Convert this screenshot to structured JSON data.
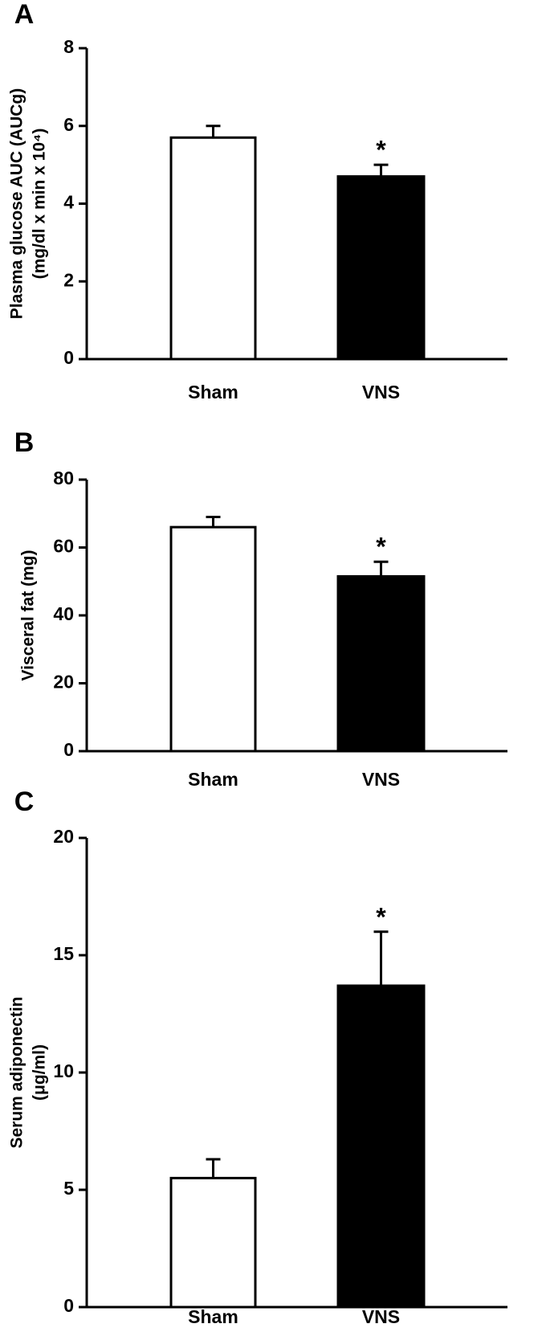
{
  "chart_data": [
    {
      "type": "bar",
      "panel_label": "A",
      "y_label": [
        "Plasma glucose AUC (AUCg)",
        "(mg/dl x min x 10⁴)"
      ],
      "categories": [
        "Sham",
        "VNS"
      ],
      "values": [
        5.7,
        4.7
      ],
      "errors": [
        0.3,
        0.3
      ],
      "colors": [
        "#ffffff",
        "#000000"
      ],
      "significance": [
        null,
        "*"
      ],
      "ylim": [
        0,
        8
      ],
      "yticks": [
        0,
        2,
        4,
        6,
        8
      ]
    },
    {
      "type": "bar",
      "panel_label": "B",
      "y_label": [
        "Visceral fat (mg)"
      ],
      "categories": [
        "Sham",
        "VNS"
      ],
      "values": [
        66,
        51.5
      ],
      "errors": [
        3,
        4.3
      ],
      "colors": [
        "#ffffff",
        "#000000"
      ],
      "significance": [
        null,
        "*"
      ],
      "ylim": [
        0,
        80
      ],
      "yticks": [
        0,
        20,
        40,
        60,
        80
      ]
    },
    {
      "type": "bar",
      "panel_label": "C",
      "y_label": [
        "Serum adiponectin",
        "(μg/ml)"
      ],
      "categories": [
        "Sham",
        "VNS"
      ],
      "values": [
        5.5,
        13.7
      ],
      "errors": [
        0.8,
        2.3
      ],
      "colors": [
        "#ffffff",
        "#000000"
      ],
      "significance": [
        null,
        "*"
      ],
      "ylim": [
        0,
        20
      ],
      "yticks": [
        0,
        5,
        10,
        15,
        20
      ]
    }
  ]
}
